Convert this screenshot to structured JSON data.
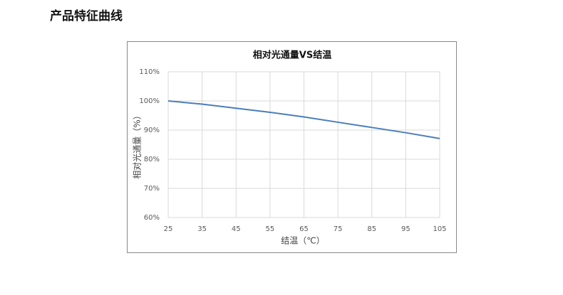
{
  "header": {
    "title": "产品特征曲线"
  },
  "chart_data": {
    "type": "line",
    "title": "相对光通量VS结温",
    "x_label": "结温（℃）",
    "y_label": "相对光通量（%）",
    "x": [
      25,
      35,
      45,
      55,
      65,
      75,
      85,
      95,
      105
    ],
    "values": [
      100,
      98.9,
      97.5,
      96.1,
      94.5,
      92.7,
      90.9,
      89.1,
      87.1
    ],
    "color": "#4a7ebb",
    "xlim": [
      25,
      105
    ],
    "xticks": [
      25,
      35,
      45,
      55,
      65,
      75,
      85,
      95,
      105
    ],
    "ylim": [
      60,
      110
    ],
    "yticks": [
      {
        "value": 60,
        "label": "60%"
      },
      {
        "value": 70,
        "label": "70%"
      },
      {
        "value": 80,
        "label": "80%"
      },
      {
        "value": 90,
        "label": "90%"
      },
      {
        "value": 100,
        "label": "100%"
      },
      {
        "value": 110,
        "label": "110%"
      }
    ],
    "grid": true
  }
}
